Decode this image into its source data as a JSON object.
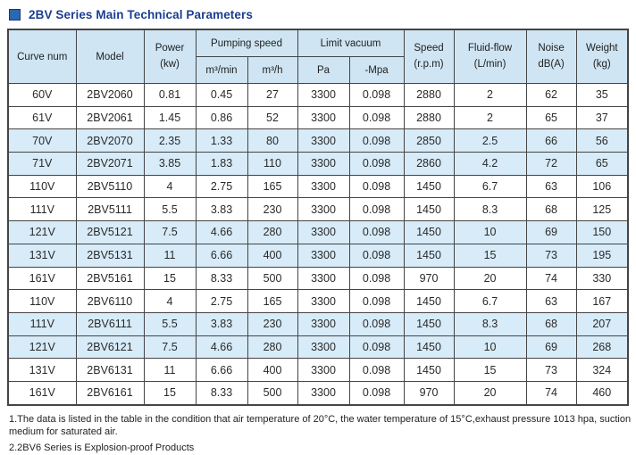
{
  "title": "2BV Series Main Technical Parameters",
  "colors": {
    "title_text": "#1b3d91",
    "title_square": "#2a68b2",
    "title_square_border": "#16387e",
    "header_bg": "#cfe5f3",
    "stripe_bg": "#d7ebf8",
    "border": "#454545"
  },
  "table": {
    "columns": {
      "curve": "Curve num",
      "model": "Model",
      "power": [
        "Power",
        "(kw)"
      ],
      "pumping_speed": "Pumping speed",
      "pumping_sub": [
        "m³/min",
        "m³/h"
      ],
      "limit_vacuum": "Limit vacuum",
      "vacuum_sub": [
        "Pa",
        "-Mpa"
      ],
      "speed": [
        "Speed",
        "(r.p.m)"
      ],
      "fluid": [
        "Fluid-flow",
        "(L/min)"
      ],
      "noise": [
        "Noise",
        "dB(A)"
      ],
      "weight": [
        "Weight",
        "(kg)"
      ]
    },
    "row_keys": [
      "curve",
      "model",
      "power",
      "pump_m3_min",
      "pump_m3_h",
      "vacuum_pa",
      "vacuum_mpa",
      "speed",
      "fluid",
      "noise",
      "weight"
    ],
    "rows": [
      {
        "curve": "60V",
        "model": "2BV2060",
        "power": "0.81",
        "pump_m3_min": "0.45",
        "pump_m3_h": "27",
        "vacuum_pa": "3300",
        "vacuum_mpa": "0.098",
        "speed": "2880",
        "fluid": "2",
        "noise": "62",
        "weight": "35",
        "shaded": false
      },
      {
        "curve": "61V",
        "model": "2BV2061",
        "power": "1.45",
        "pump_m3_min": "0.86",
        "pump_m3_h": "52",
        "vacuum_pa": "3300",
        "vacuum_mpa": "0.098",
        "speed": "2880",
        "fluid": "2",
        "noise": "65",
        "weight": "37",
        "shaded": false
      },
      {
        "curve": "70V",
        "model": "2BV2070",
        "power": "2.35",
        "pump_m3_min": "1.33",
        "pump_m3_h": "80",
        "vacuum_pa": "3300",
        "vacuum_mpa": "0.098",
        "speed": "2850",
        "fluid": "2.5",
        "noise": "66",
        "weight": "56",
        "shaded": true
      },
      {
        "curve": "71V",
        "model": "2BV2071",
        "power": "3.85",
        "pump_m3_min": "1.83",
        "pump_m3_h": "110",
        "vacuum_pa": "3300",
        "vacuum_mpa": "0.098",
        "speed": "2860",
        "fluid": "4.2",
        "noise": "72",
        "weight": "65",
        "shaded": true
      },
      {
        "curve": "110V",
        "model": "2BV5110",
        "power": "4",
        "pump_m3_min": "2.75",
        "pump_m3_h": "165",
        "vacuum_pa": "3300",
        "vacuum_mpa": "0.098",
        "speed": "1450",
        "fluid": "6.7",
        "noise": "63",
        "weight": "106",
        "shaded": false
      },
      {
        "curve": "111V",
        "model": "2BV5111",
        "power": "5.5",
        "pump_m3_min": "3.83",
        "pump_m3_h": "230",
        "vacuum_pa": "3300",
        "vacuum_mpa": "0.098",
        "speed": "1450",
        "fluid": "8.3",
        "noise": "68",
        "weight": "125",
        "shaded": false
      },
      {
        "curve": "121V",
        "model": "2BV5121",
        "power": "7.5",
        "pump_m3_min": "4.66",
        "pump_m3_h": "280",
        "vacuum_pa": "3300",
        "vacuum_mpa": "0.098",
        "speed": "1450",
        "fluid": "10",
        "noise": "69",
        "weight": "150",
        "shaded": true
      },
      {
        "curve": "131V",
        "model": "2BV5131",
        "power": "11",
        "pump_m3_min": "6.66",
        "pump_m3_h": "400",
        "vacuum_pa": "3300",
        "vacuum_mpa": "0.098",
        "speed": "1450",
        "fluid": "15",
        "noise": "73",
        "weight": "195",
        "shaded": true
      },
      {
        "curve": "161V",
        "model": "2BV5161",
        "power": "15",
        "pump_m3_min": "8.33",
        "pump_m3_h": "500",
        "vacuum_pa": "3300",
        "vacuum_mpa": "0.098",
        "speed": "970",
        "fluid": "20",
        "noise": "74",
        "weight": "330",
        "shaded": false
      },
      {
        "curve": "110V",
        "model": "2BV6110",
        "power": "4",
        "pump_m3_min": "2.75",
        "pump_m3_h": "165",
        "vacuum_pa": "3300",
        "vacuum_mpa": "0.098",
        "speed": "1450",
        "fluid": "6.7",
        "noise": "63",
        "weight": "167",
        "shaded": false
      },
      {
        "curve": "111V",
        "model": "2BV6111",
        "power": "5.5",
        "pump_m3_min": "3.83",
        "pump_m3_h": "230",
        "vacuum_pa": "3300",
        "vacuum_mpa": "0.098",
        "speed": "1450",
        "fluid": "8.3",
        "noise": "68",
        "weight": "207",
        "shaded": true
      },
      {
        "curve": "121V",
        "model": "2BV6121",
        "power": "7.5",
        "pump_m3_min": "4.66",
        "pump_m3_h": "280",
        "vacuum_pa": "3300",
        "vacuum_mpa": "0.098",
        "speed": "1450",
        "fluid": "10",
        "noise": "69",
        "weight": "268",
        "shaded": true
      },
      {
        "curve": "131V",
        "model": "2BV6131",
        "power": "11",
        "pump_m3_min": "6.66",
        "pump_m3_h": "400",
        "vacuum_pa": "3300",
        "vacuum_mpa": "0.098",
        "speed": "1450",
        "fluid": "15",
        "noise": "73",
        "weight": "324",
        "shaded": false
      },
      {
        "curve": "161V",
        "model": "2BV6161",
        "power": "15",
        "pump_m3_min": "8.33",
        "pump_m3_h": "500",
        "vacuum_pa": "3300",
        "vacuum_mpa": "0.098",
        "speed": "970",
        "fluid": "20",
        "noise": "74",
        "weight": "460",
        "shaded": false
      }
    ]
  },
  "notes": [
    "1.The data is listed in the table in the condition that air temperature of 20°C, the water temperature of 15°C,exhaust pressure 1013 hpa, suction medium for saturated air.",
    "2.2BV6 Series is Explosion-proof Products"
  ]
}
